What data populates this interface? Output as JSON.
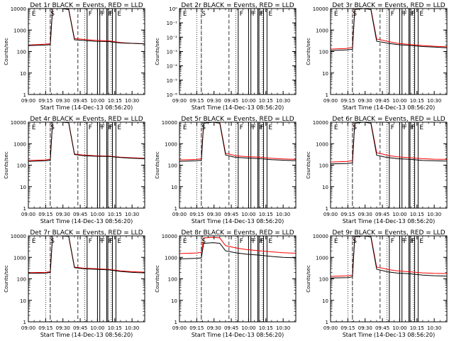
{
  "figure": {
    "start_time_label": "Start Time (14-Dec-13 08:56:20)"
  },
  "chart_data": [
    {
      "type": "line",
      "panel": "det-1r",
      "title": "Det 1r BLACK = Events, RED = LLD",
      "ylabel": "Counts/sec",
      "xlabel": "Start Time (14-Dec-13 08:56:20)",
      "yscale": "log",
      "ylim": [
        1,
        10000
      ],
      "xlim_min": [
        540,
        641
      ],
      "x_ticks": [
        "09:00",
        "09:15",
        "09:30",
        "09:45",
        "10:00",
        "10:15",
        "10:30"
      ],
      "y_ticks": [
        "1",
        "10",
        "100",
        "1000",
        "10000"
      ],
      "markers": [
        "E",
        "S",
        "F",
        "F",
        "F",
        "F",
        "F",
        "E"
      ],
      "series": [
        {
          "name": "Events",
          "color": "#000000",
          "x": [
            540,
            555,
            559,
            561,
            569,
            575,
            580,
            587,
            590,
            598,
            610,
            620,
            630,
            641
          ],
          "y": [
            190,
            200,
            210,
            10000,
            10000,
            9000,
            350,
            330,
            320,
            300,
            290,
            250,
            240,
            225
          ]
        },
        {
          "name": "LLD",
          "color": "#ff0000",
          "x": [
            540,
            555,
            559,
            561,
            569,
            575,
            580,
            587,
            590,
            598,
            610,
            620,
            630,
            641
          ],
          "y": [
            200,
            220,
            230,
            10000,
            10000,
            9500,
            400,
            370,
            360,
            330,
            310,
            260,
            240,
            230
          ]
        }
      ],
      "dotted_lines_min": [
        555,
        559,
        589,
        612
      ],
      "dashed_lines_min": [
        559,
        583
      ],
      "solid_lines_min": [
        591,
        600,
        602,
        608,
        609,
        613,
        616
      ]
    },
    {
      "type": "line",
      "panel": "det-2r",
      "title": "Det 2r BLACK = Events, RED = LLD",
      "ylabel": "Counts/sec",
      "xlabel": "Start Time (14-Dec-13 08:56:20)",
      "yscale": "log",
      "ylim": [
        1e-06,
        1
      ],
      "xlim_min": [
        540,
        641
      ],
      "x_ticks": [
        "09:00",
        "09:15",
        "09:30",
        "09:45",
        "10:00",
        "10:15",
        "10:30"
      ],
      "y_ticks": [
        "10⁻⁶",
        "10⁻⁵",
        "10⁻⁴",
        "10⁻³",
        "10⁻²",
        "10⁻¹",
        "10⁰"
      ],
      "markers": [
        "E",
        "S",
        "F",
        "F",
        "F",
        "F",
        "F",
        "E"
      ],
      "series": [],
      "dotted_lines_min": [
        555,
        559,
        589,
        612
      ],
      "dashed_lines_min": [
        559,
        583
      ],
      "solid_lines_min": [
        591,
        600,
        602,
        608,
        609,
        613,
        616
      ]
    },
    {
      "type": "line",
      "panel": "det-3r",
      "title": "Det 3r BLACK = Events, RED = LLD",
      "ylabel": "Counts/sec",
      "xlabel": "Start Time (14-Dec-13 08:56:20)",
      "yscale": "log",
      "ylim": [
        1,
        10000
      ],
      "xlim_min": [
        540,
        641
      ],
      "x_ticks": [
        "09:00",
        "09:15",
        "09:30",
        "09:45",
        "10:00",
        "10:15",
        "10:30"
      ],
      "y_ticks": [
        "1",
        "10",
        "100",
        "1000",
        "10000"
      ],
      "markers": [
        "E",
        "S",
        "F",
        "F",
        "F",
        "F",
        "F",
        "E"
      ],
      "series": [
        {
          "name": "Events",
          "color": "#000000",
          "x": [
            540,
            555,
            559,
            561,
            569,
            575,
            580,
            587,
            590,
            598,
            610,
            620,
            630,
            641
          ],
          "y": [
            110,
            120,
            130,
            9000,
            10000,
            9000,
            300,
            260,
            240,
            210,
            190,
            170,
            160,
            150
          ]
        },
        {
          "name": "LLD",
          "color": "#ff0000",
          "x": [
            540,
            555,
            559,
            561,
            569,
            575,
            580,
            587,
            590,
            598,
            610,
            620,
            630,
            641
          ],
          "y": [
            130,
            140,
            160,
            10000,
            10000,
            10000,
            380,
            320,
            290,
            240,
            210,
            190,
            175,
            165
          ]
        }
      ],
      "dotted_lines_min": [
        555,
        559,
        589,
        612
      ],
      "dashed_lines_min": [
        559,
        583
      ],
      "solid_lines_min": [
        591,
        600,
        602,
        608,
        609,
        613,
        616
      ]
    },
    {
      "type": "line",
      "panel": "det-4r",
      "title": "Det 4r BLACK = Events, RED = LLD",
      "ylabel": "Counts/sec",
      "xlabel": "Start Time (14-Dec-13 08:56:20)",
      "yscale": "log",
      "ylim": [
        1,
        10000
      ],
      "xlim_min": [
        540,
        641
      ],
      "x_ticks": [
        "09:00",
        "09:15",
        "09:30",
        "09:45",
        "10:00",
        "10:15",
        "10:30"
      ],
      "y_ticks": [
        "1",
        "10",
        "100",
        "1000",
        "10000"
      ],
      "markers": [
        "E",
        "S",
        "F",
        "F",
        "F",
        "F",
        "F",
        "E"
      ],
      "series": [
        {
          "name": "Events",
          "color": "#000000",
          "x": [
            540,
            555,
            559,
            561,
            569,
            575,
            580,
            587,
            590,
            598,
            610,
            620,
            630,
            641
          ],
          "y": [
            150,
            160,
            170,
            10000,
            10000,
            9500,
            310,
            280,
            275,
            260,
            255,
            225,
            210,
            200
          ]
        },
        {
          "name": "LLD",
          "color": "#ff0000",
          "x": [
            540,
            555,
            559,
            561,
            569,
            575,
            580,
            587,
            590,
            598,
            610,
            620,
            630,
            641
          ],
          "y": [
            165,
            175,
            190,
            10000,
            10000,
            10000,
            330,
            300,
            290,
            275,
            265,
            235,
            220,
            210
          ]
        }
      ],
      "dotted_lines_min": [
        555,
        559,
        589,
        612
      ],
      "dashed_lines_min": [
        559,
        583
      ],
      "solid_lines_min": [
        591,
        600,
        602,
        608,
        609,
        613,
        616
      ]
    },
    {
      "type": "line",
      "panel": "det-5r",
      "title": "Det 5r BLACK = Events, RED = LLD",
      "ylabel": "Counts/sec",
      "xlabel": "Start Time (14-Dec-13 08:56:20)",
      "yscale": "log",
      "ylim": [
        1,
        10000
      ],
      "xlim_min": [
        540,
        641
      ],
      "x_ticks": [
        "09:00",
        "09:15",
        "09:30",
        "09:45",
        "10:00",
        "10:15",
        "10:30"
      ],
      "y_ticks": [
        "1",
        "10",
        "100",
        "1000",
        "10000"
      ],
      "markers": [
        "E",
        "S",
        "F",
        "F",
        "F",
        "F",
        "F",
        "E"
      ],
      "series": [
        {
          "name": "Events",
          "color": "#000000",
          "x": [
            540,
            555,
            559,
            561,
            569,
            575,
            580,
            587,
            590,
            598,
            610,
            620,
            630,
            641
          ],
          "y": [
            150,
            160,
            170,
            9000,
            10000,
            9000,
            300,
            240,
            230,
            215,
            200,
            180,
            170,
            160
          ]
        },
        {
          "name": "LLD",
          "color": "#ff0000",
          "x": [
            540,
            555,
            559,
            561,
            569,
            575,
            580,
            587,
            590,
            598,
            610,
            620,
            630,
            641
          ],
          "y": [
            175,
            185,
            200,
            10000,
            10000,
            10000,
            360,
            290,
            270,
            250,
            235,
            210,
            195,
            185
          ]
        }
      ],
      "dotted_lines_min": [
        555,
        559,
        589,
        612
      ],
      "dashed_lines_min": [
        559,
        583
      ],
      "solid_lines_min": [
        591,
        600,
        602,
        608,
        609,
        613,
        616
      ]
    },
    {
      "type": "line",
      "panel": "det-6r",
      "title": "Det 6r BLACK = Events, RED = LLD",
      "ylabel": "Counts/sec",
      "xlabel": "Start Time (14-Dec-13 08:56:20)",
      "yscale": "log",
      "ylim": [
        1,
        10000
      ],
      "xlim_min": [
        540,
        641
      ],
      "x_ticks": [
        "09:00",
        "09:15",
        "09:30",
        "09:45",
        "10:00",
        "10:15",
        "10:30"
      ],
      "y_ticks": [
        "1",
        "10",
        "100",
        "1000",
        "10000"
      ],
      "markers": [
        "E",
        "S",
        "F",
        "F",
        "F",
        "F",
        "F",
        "E"
      ],
      "series": [
        {
          "name": "Events",
          "color": "#000000",
          "x": [
            540,
            555,
            559,
            561,
            569,
            575,
            580,
            587,
            590,
            598,
            610,
            620,
            630,
            641
          ],
          "y": [
            115,
            120,
            130,
            9000,
            10000,
            9000,
            290,
            240,
            225,
            200,
            185,
            165,
            160,
            155
          ]
        },
        {
          "name": "LLD",
          "color": "#ff0000",
          "x": [
            540,
            555,
            559,
            561,
            569,
            575,
            580,
            587,
            590,
            598,
            610,
            620,
            630,
            641
          ],
          "y": [
            140,
            150,
            165,
            10000,
            10000,
            10000,
            380,
            310,
            280,
            245,
            220,
            200,
            190,
            185
          ]
        }
      ],
      "dotted_lines_min": [
        555,
        559,
        589,
        612
      ],
      "dashed_lines_min": [
        559,
        583
      ],
      "solid_lines_min": [
        591,
        600,
        602,
        608,
        609,
        613,
        616
      ]
    },
    {
      "type": "line",
      "panel": "det-7r",
      "title": "Det 7r BLACK = Events, RED = LLD",
      "ylabel": "Counts/sec",
      "xlabel": "Start Time (14-Dec-13 08:56:20)",
      "yscale": "log",
      "ylim": [
        1,
        10000
      ],
      "xlim_min": [
        540,
        641
      ],
      "x_ticks": [
        "09:00",
        "09:15",
        "09:30",
        "09:45",
        "10:00",
        "10:15",
        "10:30"
      ],
      "y_ticks": [
        "1",
        "10",
        "100",
        "1000",
        "10000"
      ],
      "markers": [
        "E",
        "S",
        "F",
        "F",
        "F",
        "F",
        "F",
        "E"
      ],
      "series": [
        {
          "name": "Events",
          "color": "#000000",
          "x": [
            540,
            555,
            559,
            561,
            569,
            575,
            580,
            587,
            590,
            598,
            610,
            620,
            630,
            641
          ],
          "y": [
            180,
            185,
            200,
            10000,
            10000,
            9500,
            330,
            300,
            290,
            280,
            260,
            220,
            200,
            190
          ]
        },
        {
          "name": "LLD",
          "color": "#ff0000",
          "x": [
            540,
            555,
            559,
            561,
            569,
            575,
            580,
            587,
            590,
            598,
            610,
            620,
            630,
            641
          ],
          "y": [
            195,
            200,
            215,
            10000,
            10000,
            10000,
            350,
            320,
            310,
            300,
            275,
            235,
            215,
            205
          ]
        }
      ],
      "dotted_lines_min": [
        555,
        559,
        589,
        612
      ],
      "dashed_lines_min": [
        559,
        583
      ],
      "solid_lines_min": [
        591,
        600,
        602,
        608,
        609,
        613,
        616
      ]
    },
    {
      "type": "line",
      "panel": "det-8r",
      "title": "Det 8r BLACK = Events, RED = LLD",
      "ylabel": "Counts/sec",
      "xlabel": "Start Time (14-Dec-13 08:56:20)",
      "yscale": "log",
      "ylim": [
        1,
        10000
      ],
      "xlim_min": [
        540,
        641
      ],
      "x_ticks": [
        "09:00",
        "09:15",
        "09:30",
        "09:45",
        "10:00",
        "10:15",
        "10:30"
      ],
      "y_ticks": [
        "1",
        "10",
        "100",
        "1000",
        "10000"
      ],
      "markers": [
        "E",
        "S",
        "F",
        "F",
        "F",
        "F",
        "F",
        "E"
      ],
      "series": [
        {
          "name": "Events",
          "color": "#000000",
          "x": [
            540,
            555,
            559,
            561,
            569,
            575,
            580,
            587,
            590,
            598,
            610,
            620,
            630,
            641
          ],
          "y": [
            850,
            900,
            950,
            4500,
            4800,
            4500,
            2000,
            1700,
            1600,
            1400,
            1250,
            1100,
            1000,
            950
          ]
        },
        {
          "name": "LLD",
          "color": "#ff0000",
          "x": [
            540,
            555,
            559,
            561,
            569,
            575,
            580,
            587,
            590,
            598,
            610,
            620,
            630,
            641
          ],
          "y": [
            1500,
            1600,
            1700,
            8000,
            8500,
            8000,
            3500,
            2900,
            2700,
            2300,
            2000,
            1800,
            1650,
            1550
          ]
        }
      ],
      "dotted_lines_min": [
        555,
        559,
        589,
        612
      ],
      "dashed_lines_min": [
        559,
        583
      ],
      "solid_lines_min": [
        591,
        600,
        602,
        608,
        609,
        613,
        616
      ]
    },
    {
      "type": "line",
      "panel": "det-9r",
      "title": "Det 9r BLACK = Events, RED = LLD",
      "ylabel": "Counts/sec",
      "xlabel": "Start Time (14-Dec-13 08:56:20)",
      "yscale": "log",
      "ylim": [
        1,
        10000
      ],
      "xlim_min": [
        540,
        641
      ],
      "x_ticks": [
        "09:00",
        "09:15",
        "09:30",
        "09:45",
        "10:00",
        "10:15",
        "10:30"
      ],
      "y_ticks": [
        "1",
        "10",
        "100",
        "1000",
        "10000"
      ],
      "markers": [
        "E",
        "S",
        "F",
        "F",
        "F",
        "F",
        "F",
        "E"
      ],
      "series": [
        {
          "name": "Events",
          "color": "#000000",
          "x": [
            540,
            555,
            559,
            561,
            569,
            575,
            580,
            587,
            590,
            598,
            610,
            620,
            630,
            641
          ],
          "y": [
            110,
            115,
            125,
            9000,
            10000,
            9000,
            280,
            230,
            210,
            185,
            170,
            150,
            140,
            135
          ]
        },
        {
          "name": "LLD",
          "color": "#ff0000",
          "x": [
            540,
            555,
            559,
            561,
            569,
            575,
            580,
            587,
            590,
            598,
            610,
            620,
            630,
            641
          ],
          "y": [
            130,
            140,
            150,
            10000,
            10000,
            10000,
            350,
            300,
            270,
            235,
            210,
            190,
            180,
            175
          ]
        }
      ],
      "dotted_lines_min": [
        555,
        559,
        589,
        612
      ],
      "dashed_lines_min": [
        559,
        583
      ],
      "solid_lines_min": [
        591,
        600,
        602,
        608,
        609,
        613,
        616
      ]
    }
  ]
}
